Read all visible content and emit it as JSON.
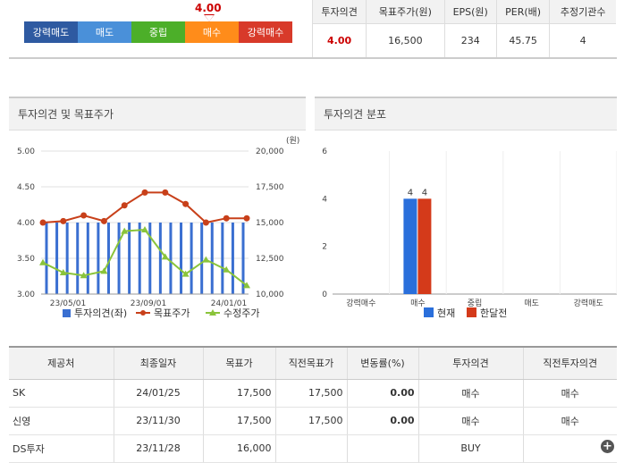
{
  "opinion_scale": {
    "segments": [
      {
        "label": "강력매도",
        "color": "#2e5aa1"
      },
      {
        "label": "매도",
        "color": "#4a90d9"
      },
      {
        "label": "중립",
        "color": "#4caf29"
      },
      {
        "label": "매수",
        "color": "#ff8c1a"
      },
      {
        "label": "강력매수",
        "color": "#d83a2a"
      }
    ],
    "current_value": "4.00"
  },
  "summary": {
    "headers": [
      "투자의견",
      "목표주가(원)",
      "EPS(원)",
      "PER(배)",
      "추정기관수"
    ],
    "values": [
      "4.00",
      "16,500",
      "234",
      "45.75",
      "4"
    ]
  },
  "left_panel": {
    "title": "투자의견 및 목표주가"
  },
  "right_panel": {
    "title": "투자의견 분포"
  },
  "chart_data": [
    {
      "type": "bar+line",
      "y_left": {
        "range": [
          3.0,
          5.0
        ],
        "ticks": [
          "5.00",
          "4.50",
          "4.00",
          "3.50",
          "3.00"
        ]
      },
      "y_right": {
        "range": [
          10000,
          20000
        ],
        "ticks": [
          "20,000",
          "17,500",
          "15,000",
          "12,500",
          "10,000"
        ],
        "unit": "(원)"
      },
      "x_ticks": [
        "23/05/01",
        "23/09/01",
        "24/01/01"
      ],
      "series": [
        {
          "name": "투자의견(좌)",
          "kind": "bar",
          "color": "#3a6fd1",
          "values": [
            4.0,
            4.0,
            4.0,
            4.0,
            4.0,
            4.0,
            4.0,
            4.0,
            4.0,
            4.0,
            4.0,
            4.0,
            4.0,
            4.0,
            4.0,
            4.0,
            4.0,
            4.0,
            4.0,
            4.0
          ]
        },
        {
          "name": "목표주가",
          "kind": "line",
          "color": "#c8401a",
          "values": [
            15000,
            15100,
            15500,
            15100,
            16200,
            17100,
            17100,
            16300,
            15000,
            15300,
            15300
          ]
        },
        {
          "name": "수정주가",
          "kind": "line",
          "color": "#8ac43a",
          "values": [
            12200,
            11500,
            11300,
            11600,
            14400,
            14500,
            12600,
            11400,
            12400,
            11700,
            10600
          ]
        }
      ]
    },
    {
      "type": "bar",
      "categories": [
        "강력매수",
        "매수",
        "중립",
        "매도",
        "강력매도"
      ],
      "ylim": [
        0,
        6
      ],
      "y_ticks": [
        "6",
        "4",
        "2",
        "0"
      ],
      "series": [
        {
          "name": "현재",
          "color": "#2a6fdb",
          "values": [
            0,
            4,
            0,
            0,
            0
          ]
        },
        {
          "name": "한달전",
          "color": "#d43a1a",
          "values": [
            0,
            4,
            0,
            0,
            0
          ]
        }
      ],
      "data_labels": [
        "4",
        "4"
      ]
    }
  ],
  "reports": {
    "headers": [
      "제공처",
      "최종일자",
      "목표가",
      "직전목표가",
      "변동률(%)",
      "투자의견",
      "직전투자의견"
    ],
    "rows": [
      [
        "SK",
        "24/01/25",
        "17,500",
        "17,500",
        "0.00",
        "매수",
        "매수"
      ],
      [
        "신영",
        "23/11/30",
        "17,500",
        "17,500",
        "0.00",
        "매수",
        "매수"
      ],
      [
        "DS투자",
        "23/11/28",
        "16,000",
        "",
        "",
        "BUY",
        ""
      ]
    ]
  }
}
